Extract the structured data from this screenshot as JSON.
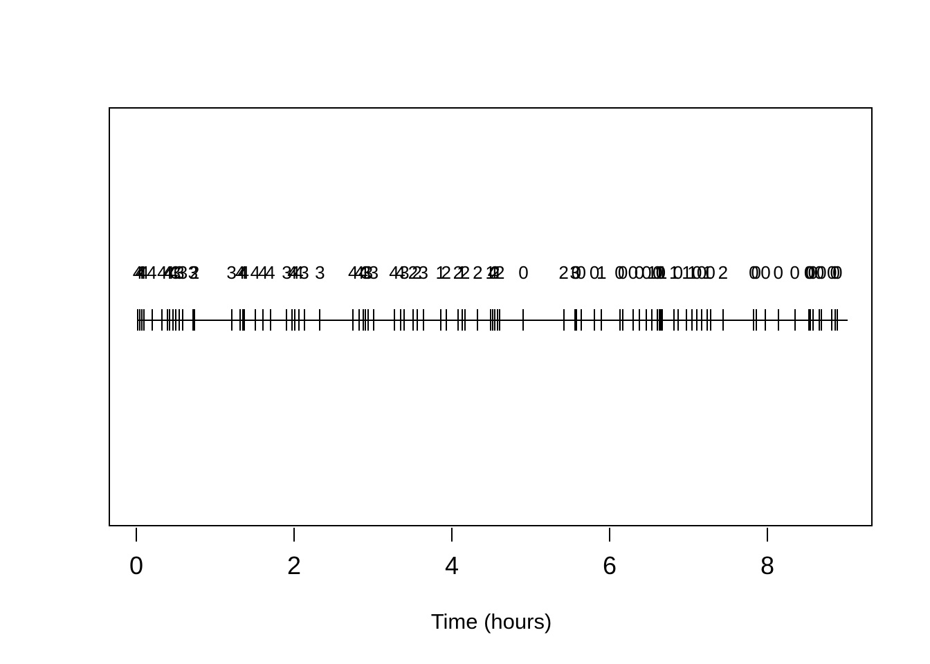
{
  "colors": {
    "background": "#ffffff",
    "stroke": "#000000",
    "text": "#000000"
  },
  "chart_data": {
    "type": "rug",
    "title": "",
    "xlabel": "Time (hours)",
    "ylabel": "",
    "xlim": [
      0,
      9
    ],
    "x_ticks": [
      0,
      2,
      4,
      6,
      8
    ],
    "grid": false,
    "legend": false,
    "description": "Event times drawn as rug tick marks on a horizontal line, with a numeric mark (0-4) printed above each event time",
    "times": [
      0.0,
      0.03,
      0.05,
      0.08,
      0.18,
      0.31,
      0.38,
      0.4,
      0.45,
      0.48,
      0.53,
      0.57,
      0.7,
      0.72,
      1.19,
      1.3,
      1.33,
      1.35,
      1.49,
      1.59,
      1.68,
      1.89,
      1.96,
      1.99,
      2.04,
      2.11,
      2.31,
      2.73,
      2.81,
      2.86,
      2.89,
      2.92,
      2.99,
      3.25,
      3.33,
      3.38,
      3.49,
      3.54,
      3.62,
      3.84,
      3.91,
      4.06,
      4.11,
      4.15,
      4.31,
      4.47,
      4.5,
      4.53,
      4.56,
      4.59,
      4.89,
      5.4,
      5.54,
      5.56,
      5.62,
      5.79,
      5.88,
      6.11,
      6.15,
      6.28,
      6.36,
      6.45,
      6.52,
      6.59,
      6.61,
      6.63,
      6.65,
      6.8,
      6.85,
      6.96,
      7.03,
      7.09,
      7.15,
      7.22,
      7.26,
      7.42,
      7.81,
      7.84,
      7.96,
      8.12,
      8.33,
      8.51,
      8.53,
      8.56,
      8.64,
      8.67,
      8.8,
      8.84,
      8.87
    ],
    "marks": [
      4,
      4,
      4,
      4,
      4,
      4,
      4,
      4,
      4,
      3,
      3,
      3,
      3,
      2,
      3,
      4,
      4,
      4,
      4,
      4,
      4,
      3,
      4,
      4,
      4,
      3,
      3,
      4,
      4,
      4,
      3,
      3,
      3,
      4,
      4,
      3,
      2,
      2,
      3,
      1,
      2,
      2,
      1,
      2,
      2,
      1,
      4,
      2,
      1,
      2,
      0,
      2,
      3,
      0,
      0,
      0,
      1,
      0,
      0,
      0,
      0,
      0,
      1,
      0,
      1,
      0,
      1,
      1,
      0,
      1,
      1,
      0,
      0,
      1,
      0,
      2,
      0,
      0,
      0,
      0,
      0,
      0,
      0,
      0,
      0,
      0,
      0,
      0,
      0
    ]
  }
}
